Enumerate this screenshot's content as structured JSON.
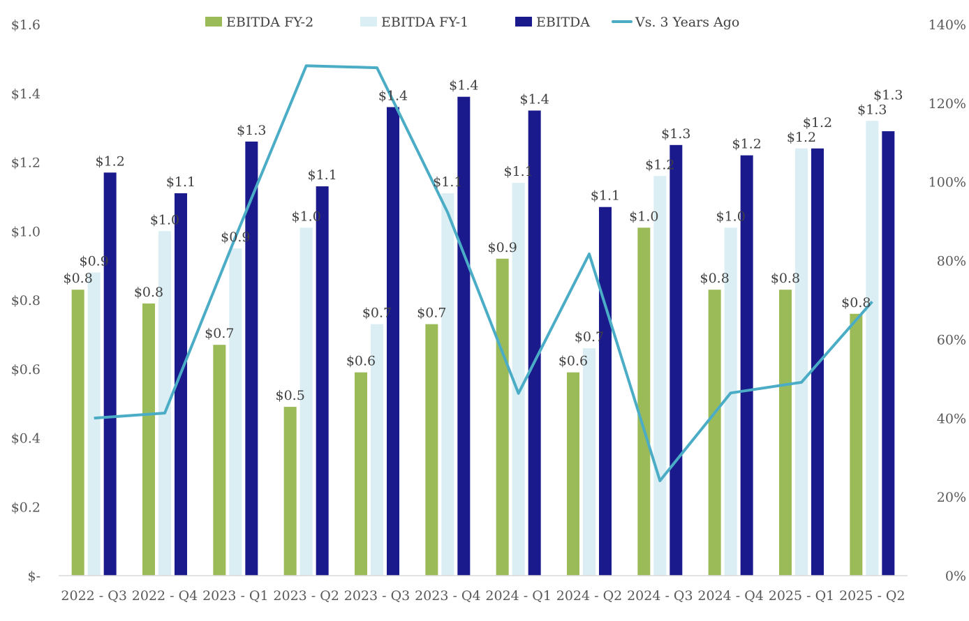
{
  "chart_data": {
    "type": "bar",
    "title": "",
    "categories": [
      "2022 - Q3",
      "2022 - Q4",
      "2023 - Q1",
      "2023 - Q2",
      "2023 - Q3",
      "2023 - Q4",
      "2024 - Q1",
      "2024 - Q2",
      "2024 - Q3",
      "2024 - Q4",
      "2025 - Q1",
      "2025 - Q2"
    ],
    "series": [
      {
        "name": "EBITDA FY-2",
        "type": "bar",
        "axis": "left",
        "color": "#9BBB59",
        "values": [
          0.83,
          0.79,
          0.67,
          0.49,
          0.59,
          0.73,
          0.92,
          0.59,
          1.01,
          0.83,
          0.83,
          0.76
        ]
      },
      {
        "name": "EBITDA FY-1",
        "type": "bar",
        "axis": "left",
        "color": "#DAEEF3",
        "values": [
          0.88,
          1.0,
          0.95,
          1.01,
          0.73,
          1.11,
          1.14,
          0.66,
          1.16,
          1.01,
          1.24,
          1.32
        ]
      },
      {
        "name": "EBITDA",
        "type": "bar",
        "axis": "left",
        "color": "#1A1A8C",
        "values": [
          1.17,
          1.11,
          1.26,
          1.13,
          1.36,
          1.39,
          1.35,
          1.07,
          1.25,
          1.22,
          1.24,
          1.29
        ]
      },
      {
        "name": "Vs. 3 Years Ago",
        "type": "line",
        "axis": "right",
        "color": "#4BACC6",
        "values": [
          40.0,
          41.3,
          86.0,
          129.5,
          129.0,
          92.2,
          46.3,
          81.7,
          24.1,
          46.4,
          49.1,
          69.6
        ]
      }
    ],
    "y_left": {
      "range": [
        0,
        1.6
      ],
      "ticks": [
        "$-",
        "$0.2",
        "$0.4",
        "$0.6",
        "$0.8",
        "$1.0",
        "$1.2",
        "$1.4",
        "$1.6"
      ]
    },
    "y_right": {
      "range": [
        0,
        140
      ],
      "ticks": [
        "0%",
        "20%",
        "40%",
        "60%",
        "80%",
        "100%",
        "120%",
        "140%"
      ]
    },
    "data_labels": "currency, 1 decimal, on bars",
    "grid": false,
    "legend": "top"
  }
}
